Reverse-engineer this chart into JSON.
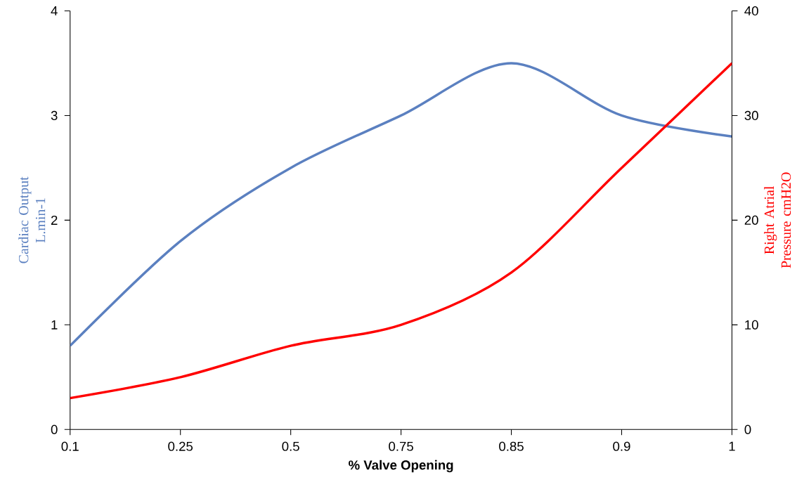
{
  "chart_data": {
    "type": "line",
    "xlabel": "% Valve Opening",
    "ylabel": "Cardiac Output L.min-1",
    "y2label": "Right Atrial Pressure cmH2O",
    "categories": [
      "0.1",
      "0.25",
      "0.5",
      "0.75",
      "0.85",
      "0.9",
      "1"
    ],
    "series": [
      {
        "color": "#5b80c0",
        "values": [
          0.8,
          1.8,
          2.5,
          3.0,
          3.5,
          3.0,
          2.8
        ]
      },
      {
        "color": "#ff0000",
        "axis": "y2",
        "values": [
          3,
          5,
          8,
          10,
          15,
          25,
          35
        ]
      }
    ],
    "ylim": [
      0,
      4
    ],
    "yticks": [
      0,
      1,
      2,
      3,
      4
    ],
    "y2lim": [
      0,
      40
    ],
    "y2ticks": [
      0,
      10,
      20,
      30,
      40
    ]
  }
}
